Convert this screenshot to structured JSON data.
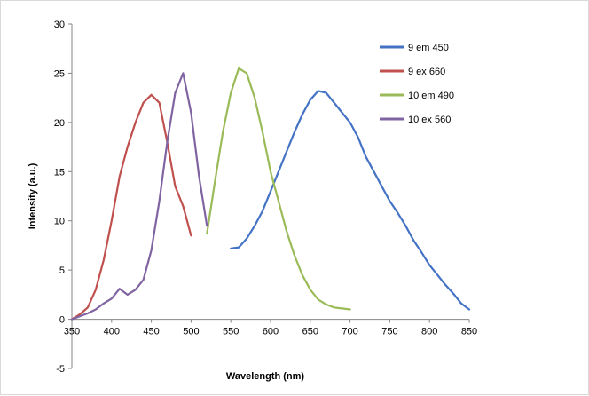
{
  "chart_data": {
    "type": "line",
    "title": "",
    "xlabel": "Wavelength (nm)",
    "ylabel": "Intensity (a.u.)",
    "xlim": [
      350,
      850
    ],
    "ylim": [
      -5,
      30
    ],
    "xticks": [
      350,
      400,
      450,
      500,
      550,
      600,
      650,
      700,
      750,
      800,
      850
    ],
    "yticks": [
      -5,
      0,
      5,
      10,
      15,
      20,
      25,
      30
    ],
    "grid": false,
    "legend_position": "top-right",
    "series": [
      {
        "name": "9 em 450",
        "color": "#4472C4",
        "x": [
          550,
          560,
          570,
          580,
          590,
          600,
          610,
          620,
          630,
          640,
          650,
          660,
          670,
          680,
          690,
          700,
          710,
          720,
          730,
          740,
          750,
          760,
          770,
          780,
          790,
          800,
          810,
          820,
          830,
          840,
          850
        ],
        "y": [
          7.2,
          7.3,
          8.2,
          9.5,
          11.0,
          13.0,
          15.0,
          17.0,
          19.0,
          20.8,
          22.3,
          23.2,
          23.0,
          22.0,
          21.0,
          20.0,
          18.5,
          16.5,
          15.0,
          13.5,
          12.0,
          10.8,
          9.5,
          8.0,
          6.8,
          5.5,
          4.5,
          3.5,
          2.6,
          1.6,
          1.0
        ]
      },
      {
        "name": "9 ex 660",
        "color": "#C0504D",
        "x": [
          350,
          360,
          370,
          380,
          390,
          400,
          410,
          420,
          430,
          440,
          450,
          460,
          470,
          480,
          490,
          500
        ],
        "y": [
          0.0,
          0.5,
          1.2,
          3.0,
          6.0,
          10.0,
          14.5,
          17.5,
          20.0,
          22.0,
          22.8,
          22.0,
          18.0,
          13.5,
          11.5,
          8.5
        ]
      },
      {
        "name": "10 em 490",
        "color": "#9BBB59",
        "x": [
          520,
          530,
          540,
          550,
          560,
          570,
          580,
          590,
          600,
          610,
          620,
          630,
          640,
          650,
          660,
          670,
          680,
          690,
          700
        ],
        "y": [
          8.7,
          14.0,
          19.0,
          23.0,
          25.5,
          25.0,
          22.5,
          19.0,
          15.0,
          12.0,
          9.0,
          6.5,
          4.5,
          3.0,
          2.0,
          1.5,
          1.2,
          1.1,
          1.0
        ]
      },
      {
        "name": "10 ex 560",
        "color": "#8064A2",
        "x": [
          350,
          360,
          370,
          380,
          390,
          400,
          410,
          420,
          430,
          440,
          450,
          460,
          470,
          480,
          490,
          500,
          510,
          520
        ],
        "y": [
          0.0,
          0.3,
          0.6,
          1.0,
          1.6,
          2.1,
          3.1,
          2.5,
          3.0,
          4.0,
          7.0,
          12.0,
          18.0,
          23.0,
          25.0,
          21.0,
          14.5,
          9.5
        ]
      }
    ]
  }
}
